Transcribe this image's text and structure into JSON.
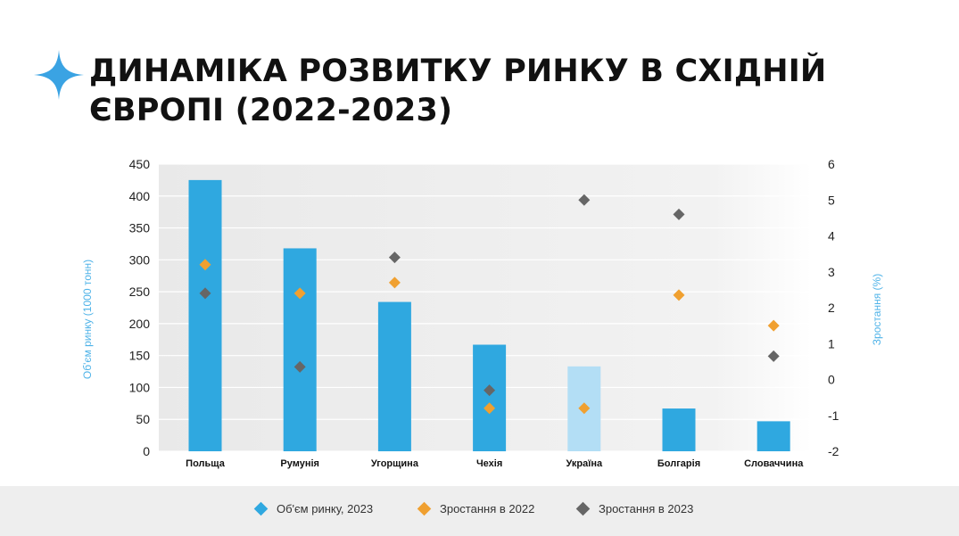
{
  "title": "ДИНАМІКА РОЗВИТКУ РИНКУ В СХІДНІЙ ЄВРОПІ (2022-2023)",
  "colors": {
    "accent": "#3aa3e3",
    "bar": "#2fa8e0",
    "bar_light": "#b3def5",
    "growth_2022": "#f0a030",
    "growth_2023": "#666666",
    "axis_label": "#4fb3e8"
  },
  "chart_data": {
    "type": "bar",
    "categories": [
      "Польща",
      "Румунія",
      "Угорщина",
      "Чехія",
      "Україна",
      "Болгарія",
      "Словаччина"
    ],
    "series": [
      {
        "name": "Об'єм ринку, 2023",
        "type": "bar",
        "axis": "left",
        "values": [
          425,
          318,
          234,
          167,
          133,
          67,
          47
        ]
      },
      {
        "name": "Зростання в 2022",
        "type": "scatter",
        "axis": "right",
        "values": [
          3.2,
          2.4,
          2.7,
          -0.8,
          -0.8,
          2.35,
          1.5
        ]
      },
      {
        "name": "Зростання в 2023",
        "type": "scatter",
        "axis": "right",
        "values": [
          2.4,
          0.35,
          3.4,
          -0.3,
          5.0,
          4.6,
          0.65
        ]
      }
    ],
    "highlighted_category": "Україна",
    "ylabel": "Об'єм ринку (1000 тонн)",
    "y2label": "Зростання (%)",
    "ylim": [
      0,
      450
    ],
    "y2lim": [
      -2,
      6
    ],
    "yticks": [
      "0",
      "50",
      "100",
      "150",
      "200",
      "250",
      "300",
      "350",
      "400",
      "450"
    ],
    "y2ticks": [
      "-2",
      "-1",
      "0",
      "1",
      "2",
      "3",
      "4",
      "5",
      "6"
    ],
    "grid": true,
    "legend_position": "bottom"
  }
}
